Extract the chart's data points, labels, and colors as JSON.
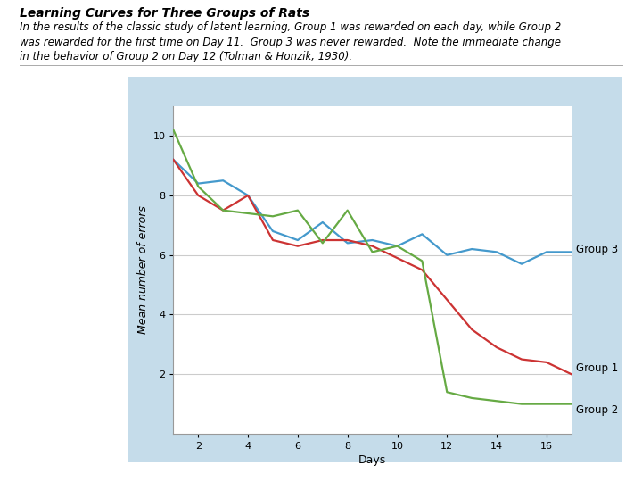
{
  "title": "Learning Curves for Three Groups of Rats",
  "subtitle_line1": "In the results of the classic study of latent learning, Group 1 was rewarded on each day, while Group 2",
  "subtitle_line2": "was rewarded for the first time on Day 11.  Group 3 was never rewarded.  Note the immediate change",
  "subtitle_line3": "in the behavior of Group 2 on Day 12 (Tolman & Honzik, 1930).",
  "xlabel": "Days",
  "ylabel": "Mean number of errors",
  "xlim": [
    1,
    17
  ],
  "ylim": [
    0,
    11
  ],
  "yticks": [
    2,
    4,
    6,
    8,
    10
  ],
  "xticks": [
    2,
    4,
    6,
    8,
    10,
    12,
    14,
    16
  ],
  "group1_color": "#cc3333",
  "group2_color": "#66aa44",
  "group3_color": "#4499cc",
  "group1_x": [
    1,
    2,
    3,
    4,
    5,
    6,
    7,
    8,
    9,
    10,
    11,
    12,
    13,
    14,
    15,
    16,
    17
  ],
  "group1_y": [
    9.2,
    8.0,
    7.5,
    8.0,
    6.5,
    6.3,
    6.5,
    6.5,
    6.3,
    5.9,
    5.5,
    4.5,
    3.5,
    2.9,
    2.5,
    2.4,
    2.0
  ],
  "group2_x": [
    1,
    2,
    3,
    4,
    5,
    6,
    7,
    8,
    9,
    10,
    11,
    12,
    13,
    14,
    15,
    16,
    17
  ],
  "group2_y": [
    10.2,
    8.3,
    7.5,
    7.4,
    7.3,
    7.5,
    6.4,
    7.5,
    6.1,
    6.3,
    5.8,
    1.4,
    1.2,
    1.1,
    1.0,
    1.0,
    1.0
  ],
  "group3_x": [
    1,
    2,
    3,
    4,
    5,
    6,
    7,
    8,
    9,
    10,
    11,
    12,
    13,
    14,
    15,
    16,
    17
  ],
  "group3_y": [
    9.2,
    8.4,
    8.5,
    8.0,
    6.8,
    6.5,
    7.1,
    6.4,
    6.5,
    6.3,
    6.7,
    6.0,
    6.2,
    6.1,
    5.7,
    6.1,
    6.1
  ],
  "outer_bg": "#c5dcea",
  "inner_bg": "#ffffff",
  "grid_color": "#cccccc",
  "label_fontsize": 8.5,
  "axis_label_fontsize": 9,
  "tick_fontsize": 8
}
